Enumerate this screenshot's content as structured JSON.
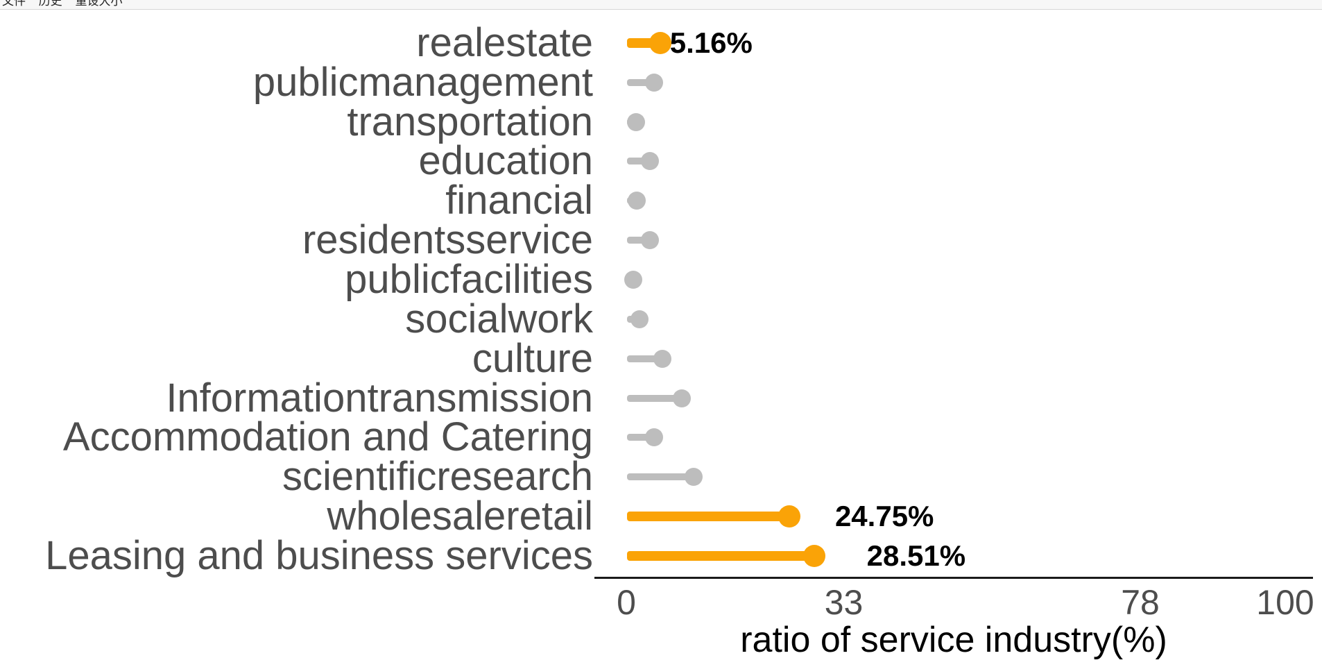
{
  "window": {
    "menu": {
      "items": [
        {
          "label": "文件"
        },
        {
          "label": "历史"
        },
        {
          "label": "重设大小"
        }
      ]
    }
  },
  "chart_data": {
    "type": "bar",
    "variant": "horizontal-lollipop",
    "title": "",
    "xlabel": "ratio of service industry(%)",
    "ylabel": "",
    "xlim": [
      0,
      100
    ],
    "x_ticks": [
      0,
      33,
      78,
      100
    ],
    "grid": false,
    "legend": "none",
    "colors": {
      "highlight": "#FAA307",
      "muted": "#BDBDBD",
      "category_text": "#4D4D4D",
      "tick_text": "#4D4D4D",
      "value_text": "#000000",
      "axis_line": "#1A1A1A"
    },
    "points": [
      {
        "category": "realestate",
        "value": 5.16,
        "value_label": "5.16%",
        "highlighted": true
      },
      {
        "category": "publicmanagement",
        "value": 4.2,
        "value_label": null,
        "highlighted": false
      },
      {
        "category": "transportation",
        "value": 1.5,
        "value_label": null,
        "highlighted": false
      },
      {
        "category": "education",
        "value": 3.6,
        "value_label": null,
        "highlighted": false
      },
      {
        "category": "financial",
        "value": 1.6,
        "value_label": null,
        "highlighted": false
      },
      {
        "category": "residentsservice",
        "value": 3.6,
        "value_label": null,
        "highlighted": false
      },
      {
        "category": "publicfacilities",
        "value": 1.0,
        "value_label": null,
        "highlighted": false
      },
      {
        "category": "socialwork",
        "value": 2.0,
        "value_label": null,
        "highlighted": false
      },
      {
        "category": "culture",
        "value": 5.5,
        "value_label": null,
        "highlighted": false
      },
      {
        "category": "Informationtransmission",
        "value": 8.4,
        "value_label": null,
        "highlighted": false
      },
      {
        "category": "Accommodation and Catering",
        "value": 4.2,
        "value_label": null,
        "highlighted": false
      },
      {
        "category": "scientificresearch",
        "value": 10.2,
        "value_label": null,
        "highlighted": false
      },
      {
        "category": "wholesaleretail",
        "value": 24.75,
        "value_label": "24.75%",
        "highlighted": true
      },
      {
        "category": "Leasing and business services",
        "value": 28.51,
        "value_label": "28.51%",
        "highlighted": true
      }
    ]
  }
}
